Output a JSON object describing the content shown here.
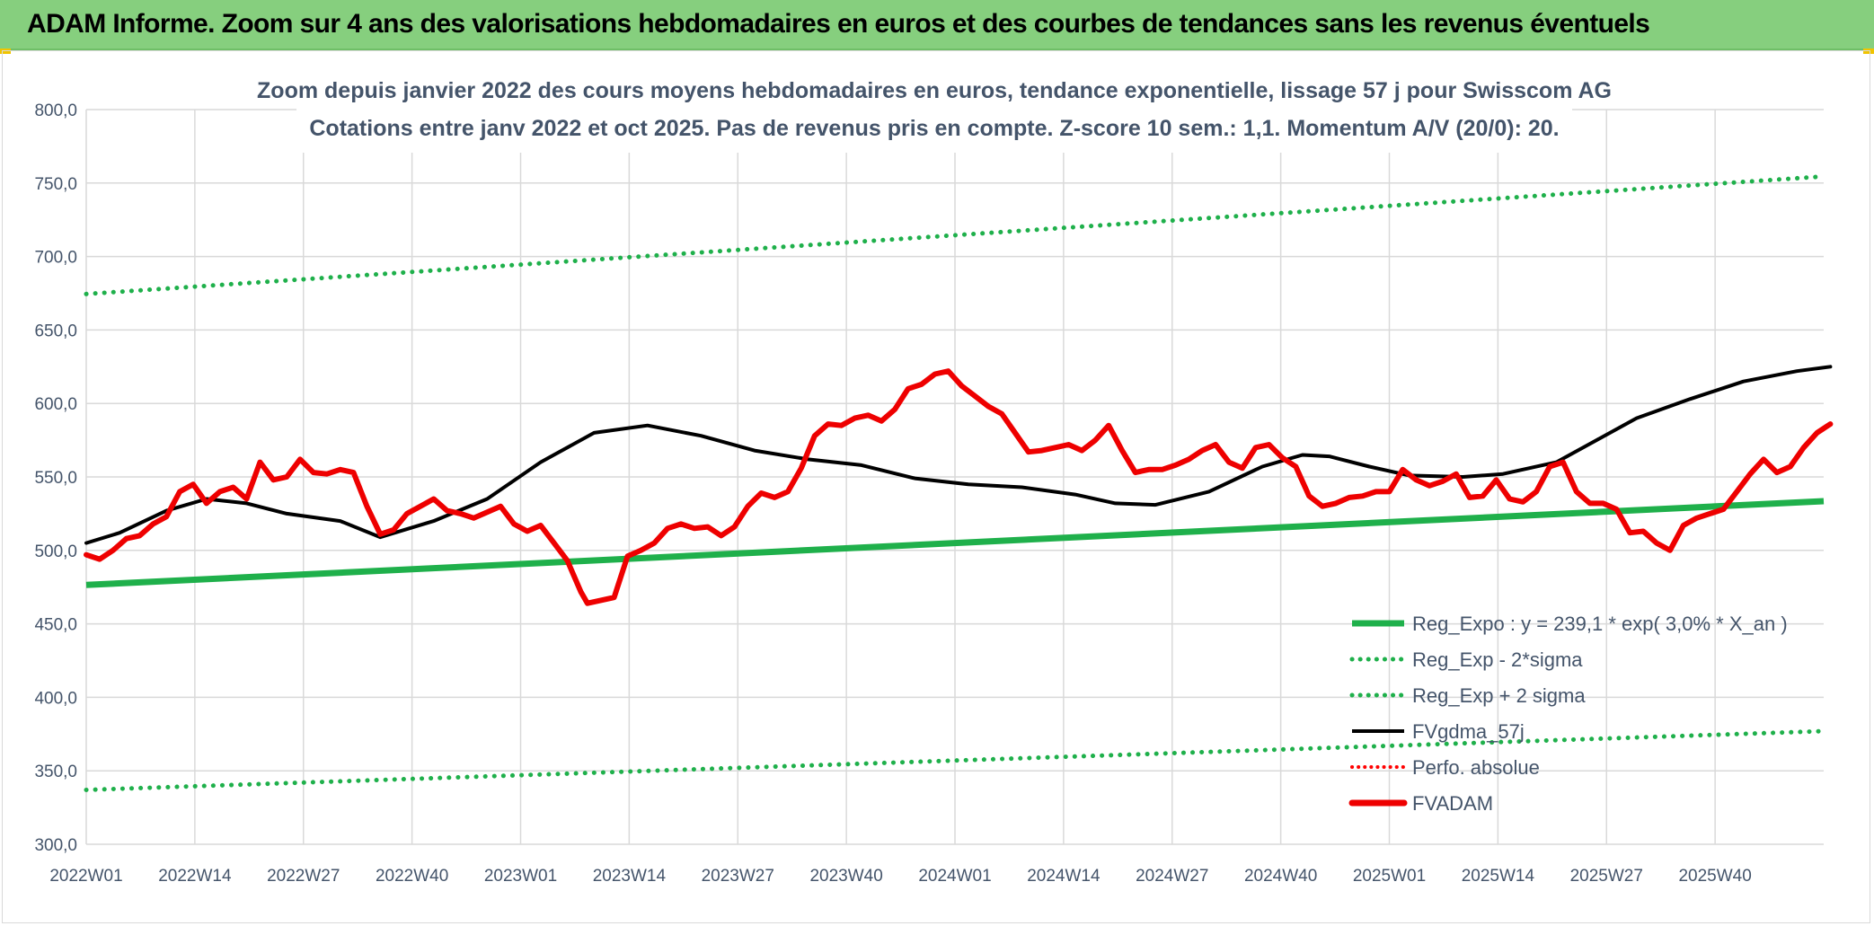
{
  "page": {
    "header_title": "ADAM Informe. Zoom sur 4 ans des valorisations hebdomadaires en euros et des courbes de tendances sans les revenus éventuels"
  },
  "colors": {
    "header_bg": "#86cf7e",
    "reg_expo": "#1fb04b",
    "bands": "#1fb04b",
    "fvgdma": "#000000",
    "perfo": "#ff0000",
    "fvadam": "#ee0000",
    "grid": "#d9d9d9",
    "text": "#44546a"
  },
  "chart_data": {
    "type": "line",
    "title_line1": "Zoom depuis janvier 2022 des cours moyens hebdomadaires en euros, tendance exponentielle, lissage 57 j pour Swisscom AG",
    "title_line2": "Cotations entre janv 2022 et oct 2025. Pas de revenus pris en compte. Z-score 10 sem.: 1,1. Momentum A/V (20/0): 20.",
    "ylim": [
      300,
      800
    ],
    "yticks": [
      "300,0",
      "350,0",
      "400,0",
      "450,0",
      "500,0",
      "550,0",
      "600,0",
      "650,0",
      "700,0",
      "750,0",
      "800,0"
    ],
    "xticks": [
      "2022W01",
      "2022W14",
      "2022W27",
      "2022W40",
      "2023W01",
      "2023W14",
      "2023W27",
      "2023W40",
      "2024W01",
      "2024W14",
      "2024W27",
      "2024W40",
      "2025W01",
      "2025W14",
      "2025W27",
      "2025W40"
    ],
    "n_weeks": 196,
    "legend": [
      {
        "key": "reg_expo",
        "label": "Reg_Expo : y = 239,1 * exp( 3,0% *  X_an )",
        "style": "solid-thick"
      },
      {
        "key": "lower",
        "label": "Reg_Exp - 2*sigma",
        "style": "dotted-green"
      },
      {
        "key": "upper",
        "label": "Reg_Exp + 2 sigma",
        "style": "dotted-green"
      },
      {
        "key": "fvgdma",
        "label": "FVgdma_57j",
        "style": "solid-black"
      },
      {
        "key": "perfo",
        "label": "Perfo. absolue",
        "style": "dotted-red"
      },
      {
        "key": "fvadam",
        "label": "FVADAM",
        "style": "solid-red"
      }
    ],
    "series": [
      {
        "name": "Reg_Expo",
        "start": 476.5,
        "end": 533.5
      },
      {
        "name": "Reg_Exp - 2*sigma",
        "start": 337,
        "end": 377
      },
      {
        "name": "Reg_Exp + 2 sigma",
        "start": 674.5,
        "end": 754.5
      },
      {
        "name": "FVgdma_57j",
        "points": [
          [
            0,
            505
          ],
          [
            5,
            512
          ],
          [
            12,
            527
          ],
          [
            18,
            535
          ],
          [
            24,
            532
          ],
          [
            30,
            525
          ],
          [
            38,
            520
          ],
          [
            44,
            509
          ],
          [
            52,
            520
          ],
          [
            60,
            535
          ],
          [
            68,
            560
          ],
          [
            76,
            580
          ],
          [
            84,
            585
          ],
          [
            92,
            578
          ],
          [
            100,
            568
          ],
          [
            108,
            562
          ],
          [
            116,
            558
          ],
          [
            124,
            549
          ],
          [
            132,
            545
          ],
          [
            140,
            543
          ],
          [
            148,
            538
          ],
          [
            154,
            532
          ],
          [
            160,
            531
          ],
          [
            168,
            540
          ],
          [
            176,
            557
          ],
          [
            182,
            565
          ],
          [
            186,
            564
          ],
          [
            192,
            557
          ],
          [
            198,
            551
          ],
          [
            206,
            550
          ],
          [
            212,
            552
          ],
          [
            220,
            560
          ],
          [
            226,
            575
          ],
          [
            232,
            590
          ],
          [
            240,
            603
          ],
          [
            248,
            615
          ],
          [
            256,
            622
          ],
          [
            261,
            625
          ]
        ]
      },
      {
        "name": "FVADAM",
        "points": [
          [
            0,
            497
          ],
          [
            2,
            494
          ],
          [
            4,
            500
          ],
          [
            6,
            508
          ],
          [
            8,
            510
          ],
          [
            10,
            518
          ],
          [
            12,
            523
          ],
          [
            14,
            540
          ],
          [
            16,
            545
          ],
          [
            18,
            532
          ],
          [
            20,
            540
          ],
          [
            22,
            543
          ],
          [
            24,
            535
          ],
          [
            26,
            560
          ],
          [
            28,
            548
          ],
          [
            30,
            550
          ],
          [
            32,
            562
          ],
          [
            34,
            553
          ],
          [
            36,
            552
          ],
          [
            38,
            555
          ],
          [
            40,
            553
          ],
          [
            42,
            530
          ],
          [
            44,
            511
          ],
          [
            46,
            514
          ],
          [
            48,
            525
          ],
          [
            50,
            530
          ],
          [
            52,
            535
          ],
          [
            54,
            527
          ],
          [
            56,
            525
          ],
          [
            58,
            522
          ],
          [
            60,
            526
          ],
          [
            62,
            530
          ],
          [
            64,
            518
          ],
          [
            66,
            513
          ],
          [
            68,
            517
          ],
          [
            70,
            505
          ],
          [
            72,
            493
          ],
          [
            74,
            472
          ],
          [
            75,
            464
          ],
          [
            77,
            466
          ],
          [
            79,
            468
          ],
          [
            81,
            496
          ],
          [
            83,
            500
          ],
          [
            85,
            505
          ],
          [
            87,
            515
          ],
          [
            89,
            518
          ],
          [
            91,
            515
          ],
          [
            93,
            516
          ],
          [
            95,
            510
          ],
          [
            97,
            516
          ],
          [
            99,
            530
          ],
          [
            101,
            539
          ],
          [
            103,
            536
          ],
          [
            105,
            540
          ],
          [
            107,
            556
          ],
          [
            109,
            578
          ],
          [
            111,
            586
          ],
          [
            113,
            585
          ],
          [
            115,
            590
          ],
          [
            117,
            592
          ],
          [
            119,
            588
          ],
          [
            121,
            596
          ],
          [
            123,
            610
          ],
          [
            125,
            613
          ],
          [
            127,
            620
          ],
          [
            129,
            622
          ],
          [
            131,
            612
          ],
          [
            133,
            605
          ],
          [
            135,
            598
          ],
          [
            137,
            593
          ],
          [
            139,
            580
          ],
          [
            141,
            567
          ],
          [
            143,
            568
          ],
          [
            145,
            570
          ],
          [
            147,
            572
          ],
          [
            149,
            568
          ],
          [
            151,
            575
          ],
          [
            153,
            585
          ],
          [
            155,
            568
          ],
          [
            157,
            553
          ],
          [
            159,
            555
          ],
          [
            161,
            555
          ],
          [
            163,
            558
          ],
          [
            165,
            562
          ],
          [
            167,
            568
          ],
          [
            169,
            572
          ],
          [
            171,
            560
          ],
          [
            173,
            556
          ],
          [
            175,
            570
          ],
          [
            177,
            572
          ],
          [
            179,
            563
          ],
          [
            181,
            557
          ],
          [
            183,
            537
          ],
          [
            185,
            530
          ],
          [
            187,
            532
          ],
          [
            189,
            536
          ],
          [
            191,
            537
          ],
          [
            193,
            540
          ],
          [
            195,
            540
          ],
          [
            197,
            555
          ],
          [
            199,
            548
          ],
          [
            201,
            544
          ],
          [
            203,
            547
          ],
          [
            205,
            552
          ],
          [
            207,
            536
          ],
          [
            209,
            537
          ],
          [
            211,
            548
          ],
          [
            213,
            535
          ],
          [
            215,
            533
          ],
          [
            217,
            540
          ],
          [
            219,
            557
          ],
          [
            221,
            560
          ],
          [
            223,
            540
          ],
          [
            225,
            532
          ],
          [
            227,
            532
          ],
          [
            229,
            528
          ],
          [
            231,
            512
          ],
          [
            233,
            513
          ],
          [
            235,
            505
          ],
          [
            237,
            500
          ],
          [
            239,
            517
          ],
          [
            241,
            522
          ],
          [
            243,
            525
          ],
          [
            245,
            528
          ],
          [
            247,
            540
          ],
          [
            249,
            552
          ],
          [
            251,
            562
          ],
          [
            253,
            553
          ],
          [
            255,
            557
          ],
          [
            257,
            570
          ],
          [
            259,
            580
          ],
          [
            261,
            586
          ]
        ]
      }
    ]
  }
}
